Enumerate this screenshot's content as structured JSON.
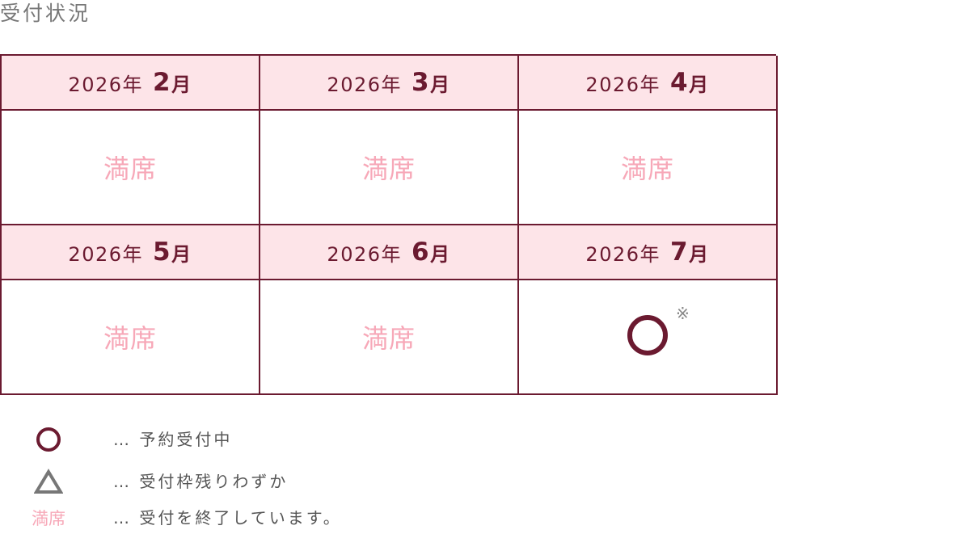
{
  "title": "受付状況",
  "months": [
    {
      "year": "2026年",
      "month": "2",
      "unit": "月",
      "status": "満席"
    },
    {
      "year": "2026年",
      "month": "3",
      "unit": "月",
      "status": "満席"
    },
    {
      "year": "2026年",
      "month": "4",
      "unit": "月",
      "status": "満席"
    },
    {
      "year": "2026年",
      "month": "5",
      "unit": "月",
      "status": "満席"
    },
    {
      "year": "2026年",
      "month": "6",
      "unit": "月",
      "status": "満席"
    },
    {
      "year": "2026年",
      "month": "7",
      "unit": "月",
      "status": "circle",
      "note": "※"
    }
  ],
  "legend": [
    {
      "symbol": "circle-icon",
      "text": "…  予約受付中"
    },
    {
      "symbol": "triangle-icon",
      "text": "…  受付枠残りわずか"
    },
    {
      "symbol": "満席",
      "text": "…  受付を終了しています。"
    }
  ],
  "colors": {
    "border": "#6b1a30",
    "header_bg": "#fde4e8",
    "full": "#f7a8b8",
    "triangle": "#777777"
  }
}
